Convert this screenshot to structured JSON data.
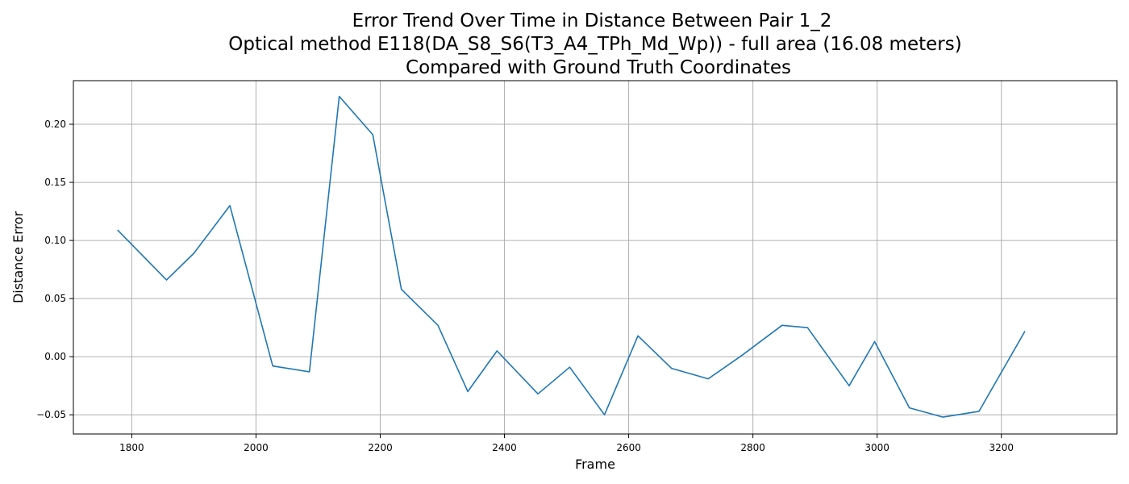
{
  "chart_data": {
    "type": "line",
    "title_lines": [
      "Error Trend Over Time in Distance Between Pair 1_2",
      "Optical method E118(DA_S8_S6(T3_A4_TPh_Md_Wp)) - full area (16.08 meters)",
      "Compared with Ground Truth Coordinates"
    ],
    "xlabel": "Frame",
    "ylabel": "Distance Error",
    "xlim": [
      1706,
      3386
    ],
    "ylim": [
      -0.0665,
      0.2375
    ],
    "xticks": [
      1800,
      2000,
      2200,
      2400,
      2600,
      2800,
      3000,
      3200
    ],
    "yticks": [
      -0.05,
      0.0,
      0.05,
      0.1,
      0.15,
      0.2
    ],
    "ytick_labels": [
      "−0.05",
      "0.00",
      "0.05",
      "0.10",
      "0.15",
      "0.20"
    ],
    "grid": true,
    "legend": "none",
    "series": [
      {
        "color": "#1f77b4",
        "x": [
          1777,
          1856,
          1900,
          1958,
          2027,
          2086,
          2134,
          2188,
          2234,
          2293,
          2341,
          2388,
          2454,
          2505,
          2561,
          2615,
          2669,
          2728,
          2782,
          2847,
          2888,
          2955,
          2996,
          3052,
          3106,
          3164,
          3238
        ],
        "y": [
          0.109,
          0.066,
          0.089,
          0.13,
          -0.008,
          -0.013,
          0.224,
          0.191,
          0.058,
          0.027,
          -0.03,
          0.005,
          -0.032,
          -0.009,
          -0.05,
          0.018,
          -0.01,
          -0.019,
          0.001,
          0.027,
          0.025,
          -0.025,
          0.013,
          -0.044,
          -0.052,
          -0.047,
          0.022
        ]
      }
    ]
  }
}
